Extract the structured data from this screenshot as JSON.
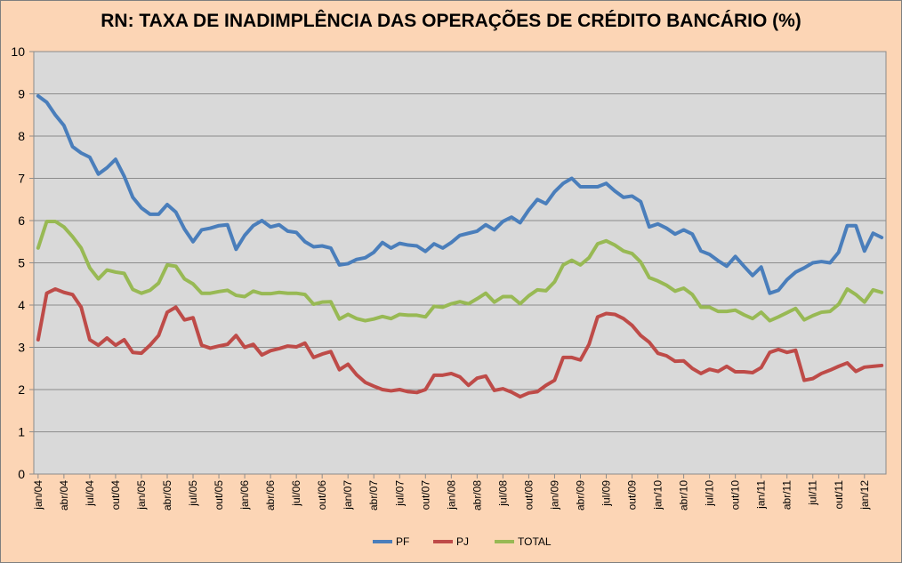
{
  "chart_data": {
    "type": "line",
    "title": "RN: TAXA DE INADIMPLÊNCIA DAS OPERAÇÕES DE CRÉDITO BANCÁRIO (%)",
    "ylim": [
      0,
      10
    ],
    "yticks": [
      0,
      1,
      2,
      3,
      4,
      5,
      6,
      7,
      8,
      9,
      10
    ],
    "grid": true,
    "legend_position": "bottom",
    "x_tick_labels": [
      "jan/04",
      "abr/04",
      "jul/04",
      "out/04",
      "jan/05",
      "abr/05",
      "jul/05",
      "out/05",
      "jan/06",
      "abr/06",
      "jul/06",
      "out/06",
      "jan/07",
      "abr/07",
      "jul/07",
      "out/07",
      "jan/08",
      "abr/08",
      "jul/08",
      "out/08",
      "jan/09",
      "abr/09",
      "jul/09",
      "out/09",
      "jan/10",
      "abr/10",
      "jul/10",
      "out/10",
      "jan/11",
      "abr/11",
      "jul/11",
      "out/11",
      "jan/12"
    ],
    "series": [
      {
        "name": "PF",
        "color": "#4a7ebb",
        "values": [
          8.95,
          8.8,
          8.5,
          8.25,
          7.75,
          7.6,
          7.5,
          7.1,
          7.25,
          7.45,
          7.05,
          6.55,
          6.3,
          6.15,
          6.15,
          6.38,
          6.2,
          5.8,
          5.5,
          5.78,
          5.82,
          5.88,
          5.9,
          5.32,
          5.65,
          5.88,
          6.0,
          5.85,
          5.9,
          5.75,
          5.72,
          5.5,
          5.38,
          5.4,
          5.35,
          4.95,
          4.98,
          5.08,
          5.12,
          5.25,
          5.48,
          5.35,
          5.46,
          5.42,
          5.4,
          5.27,
          5.45,
          5.35,
          5.48,
          5.65,
          5.7,
          5.75,
          5.9,
          5.78,
          5.98,
          6.08,
          5.95,
          6.25,
          6.5,
          6.4,
          6.68,
          6.88,
          7.0,
          6.8,
          6.8,
          6.8,
          6.88,
          6.7,
          6.55,
          6.58,
          6.45,
          5.85,
          5.92,
          5.82,
          5.68,
          5.78,
          5.68,
          5.28,
          5.2,
          5.05,
          4.92,
          5.15,
          4.92,
          4.7,
          4.9,
          4.28,
          4.35,
          4.6,
          4.78,
          4.88,
          5.0,
          5.03,
          5.0,
          5.25,
          5.88,
          5.88,
          5.28,
          5.7,
          5.6
        ]
      },
      {
        "name": "PJ",
        "color": "#be4b48",
        "values": [
          3.18,
          4.28,
          4.38,
          4.3,
          4.25,
          3.95,
          3.18,
          3.05,
          3.22,
          3.05,
          3.18,
          2.88,
          2.86,
          3.05,
          3.28,
          3.83,
          3.95,
          3.65,
          3.7,
          3.05,
          2.98,
          3.03,
          3.07,
          3.28,
          3.0,
          3.07,
          2.82,
          2.92,
          2.97,
          3.03,
          3.01,
          3.1,
          2.76,
          2.84,
          2.9,
          2.47,
          2.6,
          2.35,
          2.17,
          2.08,
          2.0,
          1.97,
          2.0,
          1.95,
          1.93,
          2.0,
          2.34,
          2.34,
          2.38,
          2.3,
          2.1,
          2.27,
          2.32,
          1.98,
          2.02,
          1.94,
          1.83,
          1.92,
          1.95,
          2.1,
          2.22,
          2.76,
          2.76,
          2.7,
          3.07,
          3.72,
          3.8,
          3.78,
          3.68,
          3.52,
          3.28,
          3.12,
          2.86,
          2.8,
          2.67,
          2.68,
          2.5,
          2.38,
          2.48,
          2.43,
          2.55,
          2.42,
          2.42,
          2.4,
          2.52,
          2.88,
          2.95,
          2.88,
          2.93,
          2.22,
          2.26,
          2.38,
          2.46,
          2.55,
          2.63,
          2.43,
          2.53,
          2.55,
          2.57
        ]
      },
      {
        "name": "TOTAL",
        "color": "#98b954",
        "values": [
          5.35,
          5.98,
          5.98,
          5.85,
          5.62,
          5.35,
          4.88,
          4.62,
          4.83,
          4.78,
          4.75,
          4.37,
          4.28,
          4.35,
          4.52,
          4.95,
          4.92,
          4.62,
          4.5,
          4.28,
          4.28,
          4.32,
          4.35,
          4.23,
          4.2,
          4.33,
          4.27,
          4.27,
          4.3,
          4.28,
          4.28,
          4.25,
          4.02,
          4.07,
          4.08,
          3.67,
          3.78,
          3.68,
          3.63,
          3.67,
          3.73,
          3.68,
          3.78,
          3.76,
          3.76,
          3.72,
          3.97,
          3.95,
          4.03,
          4.08,
          4.03,
          4.15,
          4.28,
          4.07,
          4.2,
          4.2,
          4.03,
          4.22,
          4.36,
          4.34,
          4.55,
          4.95,
          5.06,
          4.95,
          5.12,
          5.45,
          5.52,
          5.42,
          5.28,
          5.22,
          5.02,
          4.65,
          4.57,
          4.47,
          4.33,
          4.4,
          4.25,
          3.95,
          3.95,
          3.85,
          3.85,
          3.88,
          3.77,
          3.68,
          3.83,
          3.63,
          3.72,
          3.82,
          3.92,
          3.65,
          3.75,
          3.83,
          3.85,
          4.02,
          4.38,
          4.25,
          4.07,
          4.36,
          4.3
        ]
      }
    ]
  }
}
